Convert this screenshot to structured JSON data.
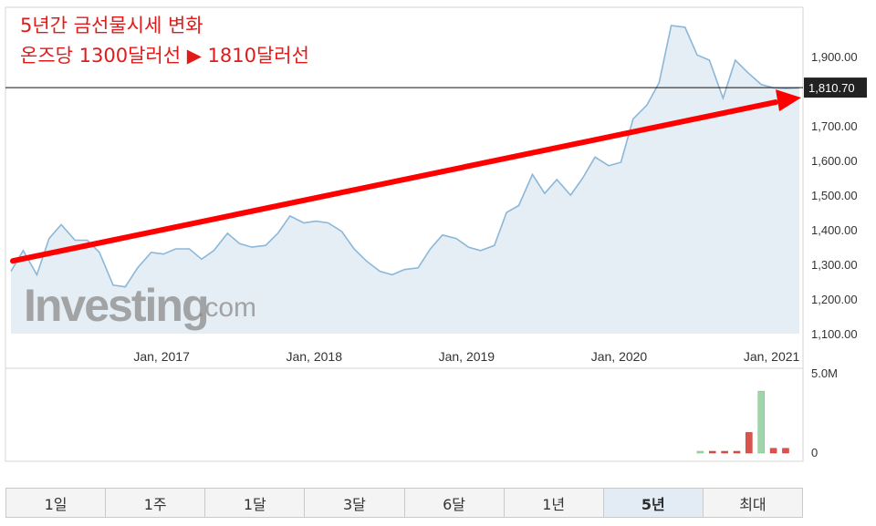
{
  "annotation": {
    "line1": "5년간 금선물시세 변화",
    "line2": "온즈당 1300달러선 ▶ 1810달러선"
  },
  "watermark": {
    "brand": "Investing",
    "suffix": ".com"
  },
  "tabs": [
    {
      "label": "1일",
      "active": false
    },
    {
      "label": "1주",
      "active": false
    },
    {
      "label": "1달",
      "active": false
    },
    {
      "label": "3달",
      "active": false
    },
    {
      "label": "6달",
      "active": false
    },
    {
      "label": "1년",
      "active": false
    },
    {
      "label": "5년",
      "active": true
    },
    {
      "label": "최대",
      "active": false
    }
  ],
  "colors": {
    "price_line": "#8bb7d8",
    "price_fill": "#e6eef5",
    "arrow": "#ff0000",
    "volume_up": "#9fd5a8",
    "volume_down": "#d9534f",
    "current_price_bg": "#222222"
  },
  "chart_data": {
    "type": "area",
    "x_tick_labels": [
      "Jan, 2017",
      "Jan, 2018",
      "Jan, 2019",
      "Jan, 2020",
      "Jan, 2021"
    ],
    "y_tick_labels": [
      "1,100.00",
      "1,200.00",
      "1,300.00",
      "1,400.00",
      "1,500.00",
      "1,600.00",
      "1,700.00",
      "1,900.00"
    ],
    "ylim": [
      1100,
      1990
    ],
    "current_price": {
      "label": "1,810.70",
      "value": 1810.7
    },
    "series": [
      {
        "x": [
          2016.0,
          2016.08,
          2016.17,
          2016.25,
          2016.33,
          2016.42,
          2016.5,
          2016.58,
          2016.67,
          2016.75,
          2016.83,
          2016.92,
          2017.0,
          2017.08,
          2017.17,
          2017.25,
          2017.33,
          2017.42,
          2017.5,
          2017.58,
          2017.67,
          2017.75,
          2017.83,
          2017.92,
          2018.0,
          2018.08,
          2018.17,
          2018.25,
          2018.33,
          2018.42,
          2018.5,
          2018.58,
          2018.67,
          2018.75,
          2018.83,
          2018.92,
          2019.0,
          2019.08,
          2019.17,
          2019.25,
          2019.33,
          2019.42,
          2019.5,
          2019.58,
          2019.67,
          2019.75,
          2019.83,
          2019.92,
          2020.0,
          2020.08,
          2020.17,
          2020.25,
          2020.33,
          2020.42,
          2020.5,
          2020.58,
          2020.67,
          2020.75,
          2020.83,
          2020.92,
          2021.0,
          2021.08,
          2021.17
        ],
        "values": [
          1280,
          1340,
          1270,
          1375,
          1415,
          1370,
          1370,
          1335,
          1240,
          1235,
          1290,
          1335,
          1330,
          1345,
          1345,
          1315,
          1340,
          1390,
          1360,
          1350,
          1355,
          1390,
          1440,
          1420,
          1425,
          1420,
          1395,
          1345,
          1310,
          1280,
          1270,
          1285,
          1290,
          1345,
          1385,
          1375,
          1350,
          1340,
          1355,
          1450,
          1470,
          1560,
          1505,
          1545,
          1500,
          1550,
          1610,
          1585,
          1595,
          1720,
          1760,
          1825,
          1990,
          1985,
          1905,
          1890,
          1780,
          1890,
          1855,
          1820,
          1810,
          1808,
          1810
        ]
      }
    ],
    "volume": {
      "ylim_labels": [
        "5.0M",
        "0"
      ],
      "max": 5000000,
      "bars": [
        {
          "x": 2020.52,
          "value": 60000,
          "direction": "up"
        },
        {
          "x": 2020.6,
          "value": 60000,
          "direction": "down"
        },
        {
          "x": 2020.68,
          "value": 60000,
          "direction": "down"
        },
        {
          "x": 2020.76,
          "value": 60000,
          "direction": "down"
        },
        {
          "x": 2020.84,
          "value": 1300000,
          "direction": "down"
        },
        {
          "x": 2020.92,
          "value": 3900000,
          "direction": "up"
        },
        {
          "x": 2021.0,
          "value": 300000,
          "direction": "down"
        },
        {
          "x": 2021.08,
          "value": 300000,
          "direction": "down"
        }
      ]
    }
  }
}
